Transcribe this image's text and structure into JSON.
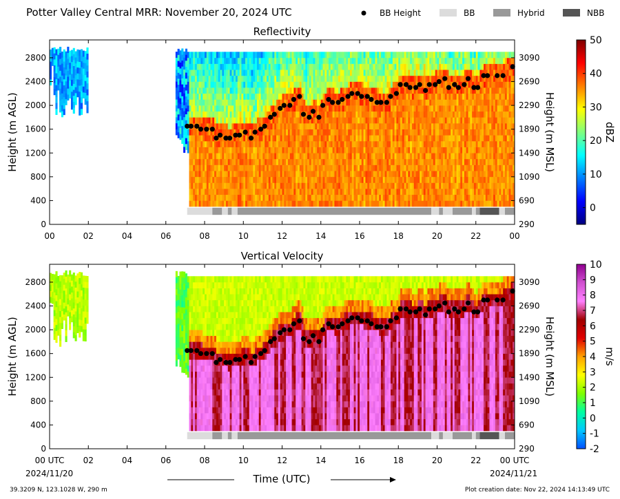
{
  "header": {
    "title": "Potter Valley Central MRR:  November 20, 2024 UTC"
  },
  "legend": {
    "items": [
      {
        "label": "BB Height",
        "kind": "marker",
        "color": "#000000"
      },
      {
        "label": "BB",
        "kind": "patch",
        "color": "#dcdcdc"
      },
      {
        "label": "Hybrid",
        "kind": "patch",
        "color": "#999999"
      },
      {
        "label": "NBB",
        "kind": "patch",
        "color": "#555555"
      }
    ]
  },
  "footer": {
    "location": "39.3209 N, 123.1028 W, 290 m",
    "creation": "Plot creation date: Nov 22, 2024 14:13:49 UTC",
    "time_label": "Time (UTC)",
    "start_date": "2024/11/20",
    "end_date": "2024/11/21"
  },
  "chart_data": [
    {
      "type": "heatmap",
      "title": "Reflectivity",
      "ylabel": "Height (m AGL)",
      "ylabel_right": "Height (m MSL)",
      "xlim": [
        0,
        24
      ],
      "ylim": [
        0,
        3100
      ],
      "x_ticks": [
        "00",
        "02",
        "04",
        "06",
        "08",
        "10",
        "12",
        "14",
        "16",
        "18",
        "20",
        "22",
        "00"
      ],
      "y_ticks": [
        0,
        400,
        800,
        1200,
        1600,
        2000,
        2400,
        2800
      ],
      "y_ticks_right": [
        290,
        690,
        1090,
        1490,
        1890,
        2290,
        2690,
        3090
      ],
      "colorbar": {
        "label": "dBZ",
        "min": -5,
        "max": 50,
        "ticks": [
          0,
          10,
          20,
          30,
          40,
          50
        ]
      },
      "colormap": [
        "#00007f",
        "#0000ff",
        "#007fff",
        "#00ffff",
        "#7fff7f",
        "#ffff00",
        "#ff7f00",
        "#ff0000",
        "#7f0000"
      ]
    },
    {
      "type": "heatmap",
      "title": "Vertical Velocity",
      "ylabel": "Height (m AGL)",
      "ylabel_right": "Height (m MSL)",
      "xlim": [
        0,
        24
      ],
      "ylim": [
        0,
        3100
      ],
      "x_ticks": [
        "00 UTC",
        "02",
        "04",
        "06",
        "08",
        "10",
        "12",
        "14",
        "16",
        "18",
        "20",
        "22",
        "00 UTC"
      ],
      "y_ticks": [
        0,
        400,
        800,
        1200,
        1600,
        2000,
        2400,
        2800
      ],
      "y_ticks_right": [
        290,
        690,
        1090,
        1490,
        1890,
        2290,
        2690,
        3090
      ],
      "colorbar": {
        "label": "m/s",
        "min": -2,
        "max": 10,
        "ticks": [
          -2,
          -1,
          0,
          1,
          2,
          3,
          4,
          5,
          6,
          7,
          8,
          9,
          10
        ]
      },
      "colormap": [
        "#0050ff",
        "#00c8ff",
        "#00ffa0",
        "#7fff00",
        "#ffff00",
        "#ffa000",
        "#e10000",
        "#a00000",
        "#ff80ff",
        "#d050d0",
        "#900090"
      ]
    }
  ],
  "bb_height": {
    "hours": [
      7.1,
      7.3,
      7.6,
      7.8,
      8.1,
      8.4,
      8.6,
      8.8,
      9.1,
      9.3,
      9.6,
      9.8,
      10.1,
      10.4,
      10.6,
      10.9,
      11.1,
      11.4,
      11.6,
      11.9,
      12.1,
      12.4,
      12.6,
      12.9,
      13.1,
      13.4,
      13.6,
      13.9,
      14.1,
      14.4,
      14.6,
      14.9,
      15.1,
      15.4,
      15.6,
      15.9,
      16.1,
      16.4,
      16.6,
      16.9,
      17.1,
      17.4,
      17.6,
      17.9,
      18.1,
      18.4,
      18.6,
      18.9,
      19.1,
      19.4,
      19.6,
      19.9,
      20.1,
      20.4,
      20.6,
      20.9,
      21.1,
      21.4,
      21.6,
      21.9,
      22.1,
      22.4,
      22.6,
      23.1,
      23.4,
      23.9
    ],
    "heights": [
      1650,
      1650,
      1650,
      1600,
      1600,
      1600,
      1450,
      1500,
      1450,
      1450,
      1500,
      1500,
      1550,
      1450,
      1550,
      1600,
      1650,
      1800,
      1850,
      1950,
      2000,
      2000,
      2100,
      2150,
      1850,
      1800,
      1900,
      1800,
      2000,
      2100,
      2050,
      2050,
      2100,
      2150,
      2200,
      2200,
      2150,
      2150,
      2100,
      2050,
      2050,
      2050,
      2150,
      2200,
      2350,
      2350,
      2300,
      2300,
      2350,
      2250,
      2350,
      2350,
      2400,
      2450,
      2300,
      2350,
      2300,
      2350,
      2450,
      2300,
      2300,
      2500,
      2500,
      2500,
      2500,
      2650
    ]
  },
  "bb_type_strip": [
    {
      "start": 7.1,
      "end": 8.4,
      "type": "BB"
    },
    {
      "start": 8.4,
      "end": 8.9,
      "type": "Hybrid"
    },
    {
      "start": 8.9,
      "end": 9.2,
      "type": "BB"
    },
    {
      "start": 9.2,
      "end": 9.4,
      "type": "Hybrid"
    },
    {
      "start": 9.4,
      "end": 9.7,
      "type": "BB"
    },
    {
      "start": 9.7,
      "end": 19.7,
      "type": "Hybrid"
    },
    {
      "start": 19.7,
      "end": 20.1,
      "type": "BB"
    },
    {
      "start": 20.1,
      "end": 20.3,
      "type": "Hybrid"
    },
    {
      "start": 20.3,
      "end": 20.8,
      "type": "BB"
    },
    {
      "start": 20.8,
      "end": 21.8,
      "type": "Hybrid"
    },
    {
      "start": 21.8,
      "end": 22.0,
      "type": "BB"
    },
    {
      "start": 22.0,
      "end": 22.2,
      "type": "Hybrid"
    },
    {
      "start": 22.2,
      "end": 23.2,
      "type": "NBB"
    },
    {
      "start": 23.2,
      "end": 23.5,
      "type": "BB"
    },
    {
      "start": 23.5,
      "end": 24.0,
      "type": "Hybrid"
    }
  ]
}
